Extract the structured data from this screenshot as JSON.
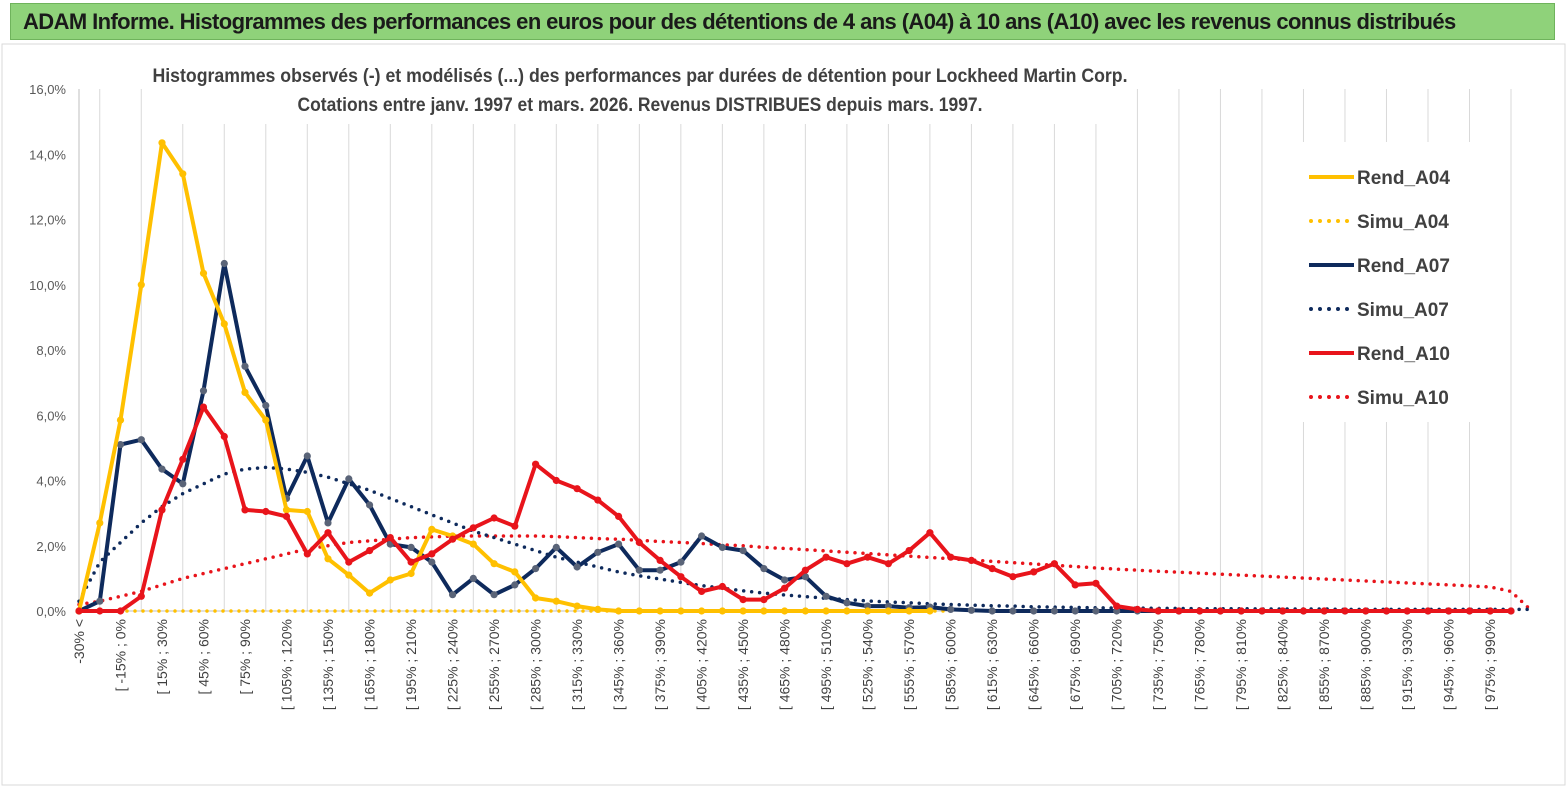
{
  "header": {
    "title": "ADAM Informe. Histogrammes des performances en euros pour des détentions de 4 ans (A04) à 10 ans (A10) avec les revenus connus distribués"
  },
  "chart_data": {
    "type": "line",
    "title": "Histogrammes observés (-) et modélisés (...) des performances par durées de détention pour Lockheed Martin Corp.",
    "subtitle": "Cotations entre janv. 1997 et mars. 2026. Revenus DISTRIBUES depuis mars. 1997.",
    "ylim": [
      0,
      16
    ],
    "yticks": [
      0,
      2,
      4,
      6,
      8,
      10,
      12,
      14,
      16
    ],
    "ytick_labels": [
      "0,0%",
      "2,0%",
      "4,0%",
      "6,0%",
      "8,0%",
      "10,0%",
      "12,0%",
      "14,0%",
      "16,0%"
    ],
    "xtick_labels": [
      "-30% <",
      "[ -15% ; 0%",
      "[ 15% ; 30%",
      "[ 45% ; 60%",
      "[ 75% ; 90%",
      "[ 105% ; 120%",
      "[ 135% ; 150%",
      "[ 165% ; 180%",
      "[ 195% ; 210%",
      "[ 225% ; 240%",
      "[ 255% ; 270%",
      "[ 285% ; 300%",
      "[ 315% ; 330%",
      "[ 345% ; 360%",
      "[ 375% ; 390%",
      "[ 405% ; 420%",
      "[ 435% ; 450%",
      "[ 465% ; 480%",
      "[ 495% ; 510%",
      "[ 525% ; 540%",
      "[ 555% ; 570%",
      "[ 585% ; 600%",
      "[ 615% ; 630%",
      "[ 645% ; 660%",
      "[ 675% ; 690%",
      "[ 705% ; 720%",
      "[ 735% ; 750%",
      "[ 765% ; 780%",
      "[ 795% ; 810%",
      "[ 825% ; 840%",
      "[ 855% ; 870%",
      "[ 885% ; 900%",
      "[ 915% ; 930%",
      "[ 945% ; 960%",
      "[ 975% ; 990%"
    ],
    "legend_position": "right",
    "series": [
      {
        "name": "Rend_A04",
        "style": "solid",
        "color": "#ffc000",
        "values": [
          0,
          2.7,
          5.85,
          10.0,
          14.35,
          13.4,
          10.35,
          8.8,
          6.7,
          5.85,
          3.1,
          3.05,
          1.6,
          1.1,
          0.55,
          0.95,
          1.15,
          2.5,
          2.3,
          2.05,
          1.45,
          1.2,
          0.4,
          0.3,
          0.15,
          0.05,
          0,
          0,
          0,
          0,
          0,
          0,
          0,
          0,
          0,
          0,
          0,
          0,
          0,
          0,
          0,
          0
        ]
      },
      {
        "name": "Simu_A04",
        "style": "dotted",
        "color": "#ffc000",
        "values": [
          0,
          0,
          0,
          0,
          0,
          0,
          0,
          0,
          0,
          0,
          0,
          0,
          0,
          0,
          0,
          0,
          0,
          0,
          0,
          0,
          0,
          0,
          0,
          0,
          0,
          0,
          0,
          0,
          0,
          0,
          0,
          0,
          0,
          0,
          0,
          0,
          0,
          0,
          0,
          0,
          0,
          0,
          0
        ]
      },
      {
        "name": "Rend_A07",
        "style": "solid",
        "color": "#0e2a5c",
        "values": [
          0,
          0.3,
          5.1,
          5.25,
          4.35,
          3.9,
          6.75,
          10.65,
          7.5,
          6.3,
          3.45,
          4.75,
          2.7,
          4.05,
          3.25,
          2.05,
          1.95,
          1.5,
          0.5,
          1.0,
          0.5,
          0.8,
          1.3,
          1.95,
          1.35,
          1.8,
          2.05,
          1.25,
          1.25,
          1.5,
          2.3,
          1.95,
          1.85,
          1.3,
          0.95,
          1.05,
          0.45,
          0.25,
          0.15,
          0.15,
          0.1,
          0.12,
          0.05,
          0.02,
          0,
          0,
          0,
          0,
          0,
          0,
          0,
          0,
          0,
          0,
          0,
          0,
          0,
          0,
          0,
          0,
          0,
          0,
          0,
          0,
          0,
          0,
          0,
          0,
          0,
          0
        ]
      },
      {
        "name": "Simu_A07",
        "style": "dotted",
        "color": "#0e2a5c",
        "values": [
          0.3,
          1.5,
          2.1,
          2.7,
          3.2,
          3.6,
          3.9,
          4.2,
          4.35,
          4.4,
          4.35,
          4.25,
          4.1,
          3.9,
          3.7,
          3.45,
          3.2,
          2.95,
          2.7,
          2.45,
          2.25,
          2.05,
          1.85,
          1.65,
          1.5,
          1.35,
          1.2,
          1.08,
          0.98,
          0.88,
          0.78,
          0.7,
          0.62,
          0.55,
          0.49,
          0.44,
          0.39,
          0.35,
          0.31,
          0.28,
          0.25,
          0.22,
          0.2,
          0.18,
          0.16,
          0.15,
          0.13,
          0.12,
          0.11,
          0.1,
          0.09,
          0.09,
          0.08,
          0.08,
          0.07,
          0.07,
          0.07,
          0.06,
          0.06,
          0.06,
          0.06,
          0.05,
          0.05,
          0.05,
          0.05,
          0.05,
          0.05,
          0.05,
          0.05,
          0.05,
          0.05
        ]
      },
      {
        "name": "Rend_A10",
        "style": "solid",
        "color": "#e8141b",
        "values": [
          0,
          0,
          0,
          0.45,
          3.1,
          4.65,
          6.25,
          5.35,
          3.1,
          3.05,
          2.9,
          1.75,
          2.4,
          1.5,
          1.85,
          2.25,
          1.5,
          1.75,
          2.2,
          2.55,
          2.85,
          2.6,
          4.5,
          4.0,
          3.75,
          3.4,
          2.9,
          2.1,
          1.55,
          1.05,
          0.6,
          0.75,
          0.35,
          0.35,
          0.7,
          1.25,
          1.65,
          1.45,
          1.65,
          1.45,
          1.85,
          2.4,
          1.65,
          1.55,
          1.3,
          1.05,
          1.2,
          1.45,
          0.8,
          0.85,
          0.15,
          0.05,
          0,
          0,
          0,
          0,
          0,
          0,
          0,
          0,
          0,
          0,
          0,
          0,
          0,
          0,
          0,
          0,
          0,
          0
        ]
      },
      {
        "name": "Simu_A10",
        "style": "dotted",
        "color": "#e8141b",
        "values": [
          0.2,
          0.3,
          0.45,
          0.6,
          0.8,
          1.0,
          1.15,
          1.3,
          1.45,
          1.6,
          1.75,
          1.9,
          2.0,
          2.1,
          2.15,
          2.2,
          2.25,
          2.27,
          2.3,
          2.3,
          2.3,
          2.3,
          2.3,
          2.28,
          2.25,
          2.22,
          2.2,
          2.17,
          2.13,
          2.1,
          2.07,
          2.03,
          2.0,
          1.95,
          1.92,
          1.88,
          1.84,
          1.8,
          1.76,
          1.72,
          1.68,
          1.64,
          1.6,
          1.56,
          1.52,
          1.48,
          1.44,
          1.4,
          1.36,
          1.32,
          1.28,
          1.25,
          1.22,
          1.19,
          1.16,
          1.13,
          1.1,
          1.07,
          1.04,
          1.01,
          0.98,
          0.95,
          0.92,
          0.89,
          0.86,
          0.83,
          0.8,
          0.77,
          0.74,
          0.6,
          0
        ]
      }
    ]
  }
}
